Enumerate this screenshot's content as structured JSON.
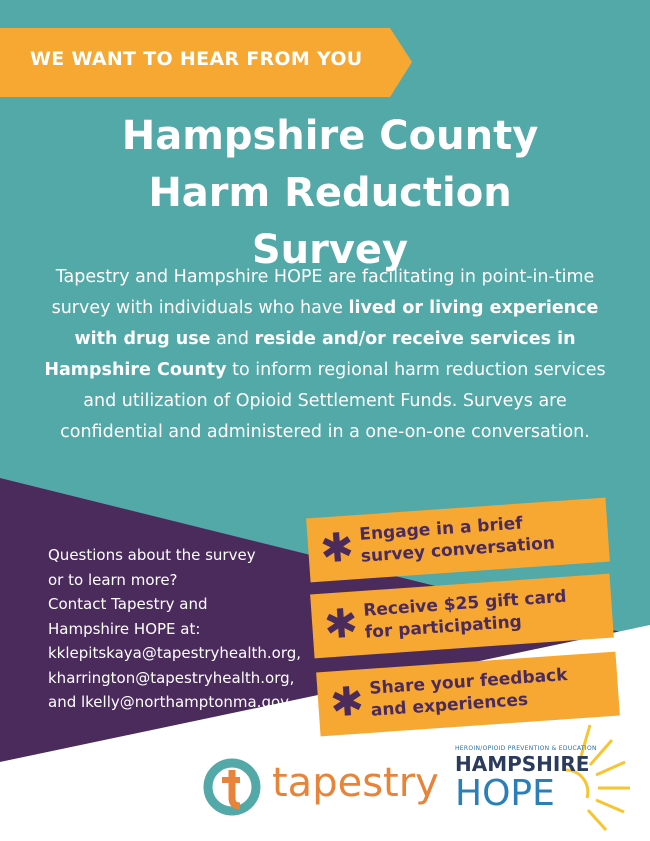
{
  "banner": "WE WANT TO HEAR FROM YOU",
  "title": [
    "Hampshire County",
    "Harm Reduction",
    "Survey"
  ],
  "intro": [
    {
      "text": "Tapestry and Hampshire HOPE are facilitating in point-in-time survey with individuals who have ",
      "bold": false
    },
    {
      "text": "lived or living experience with drug use",
      "bold": true
    },
    {
      "text": " and ",
      "bold": false
    },
    {
      "text": "reside and/or receive services in Hampshire County",
      "bold": true
    },
    {
      "text": " to inform regional harm reduction services and utilization of Opioid Settlement Funds.  Surveys are confidential and administered in a one-on-one conversation.",
      "bold": false
    }
  ],
  "contact": [
    "Questions about the survey",
    "or to learn more?",
    "Contact Tapestry and",
    "Hampshire HOPE at:",
    "kklepitskaya@tapestryhealth.org,",
    "kharrington@tapestryhealth.org,",
    "and lkelly@northamptonma.gov"
  ],
  "steps": [
    [
      "Engage in a brief",
      "survey conversation"
    ],
    [
      "Receive $25 gift card",
      "for participating"
    ],
    [
      "Share your feedback",
      "and experiences"
    ]
  ],
  "logos": {
    "tapestry": "tapestry",
    "hope_tagline": "HEROIN/OPIOID PREVENTION & EDUCATION",
    "hope_top": "HAMPSHIRE",
    "hope_bottom": "HOPE"
  }
}
